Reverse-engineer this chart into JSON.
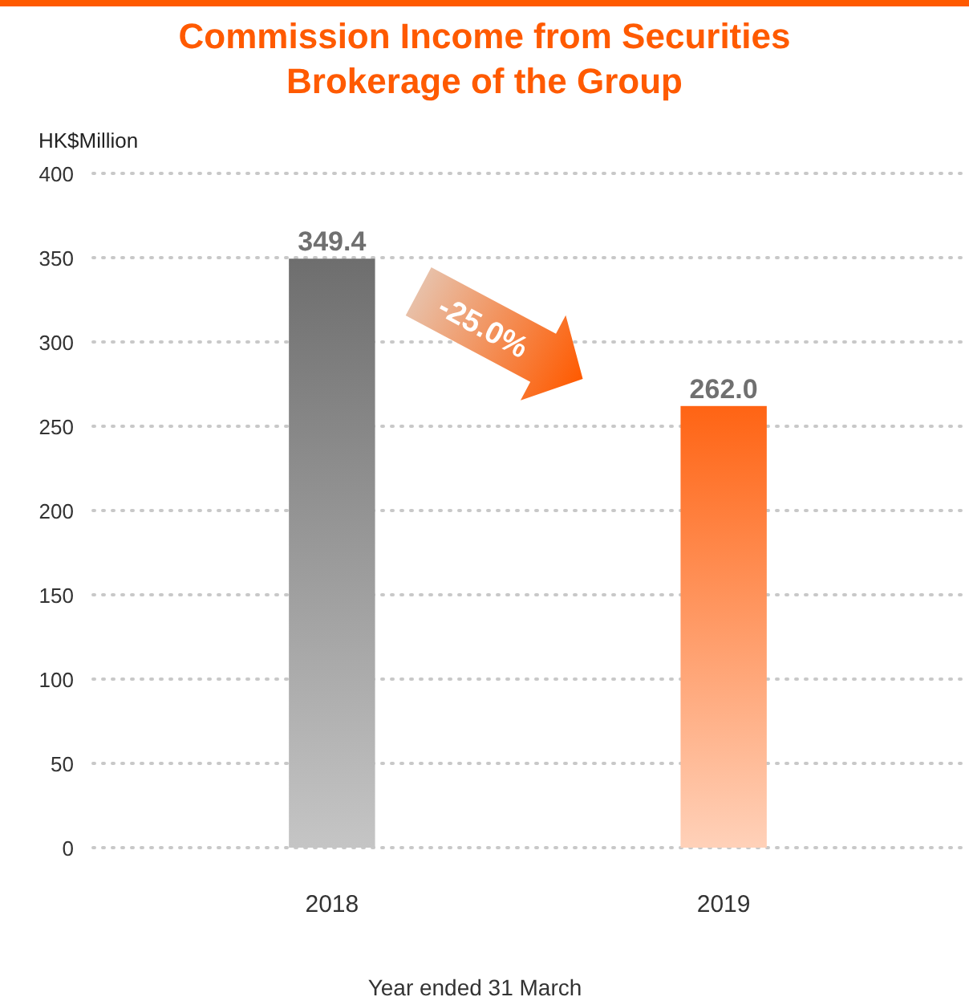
{
  "chart_data": {
    "type": "bar",
    "title": "Commission Income from Securities\nBrokerage of the Group",
    "ylabel": "HK$Million",
    "xlabel": "Year ended 31 March",
    "categories": [
      "2018",
      "2019"
    ],
    "values": [
      349.4,
      262.0
    ],
    "colors": [
      "#6e6e6e",
      "#ff6414"
    ],
    "value_labels": [
      "349.4",
      "262.0"
    ],
    "ylim": [
      0,
      400
    ],
    "yticks": [
      0,
      50,
      100,
      150,
      200,
      250,
      300,
      350,
      400
    ],
    "grid": "y",
    "annotations": [
      "-25.0%"
    ]
  }
}
